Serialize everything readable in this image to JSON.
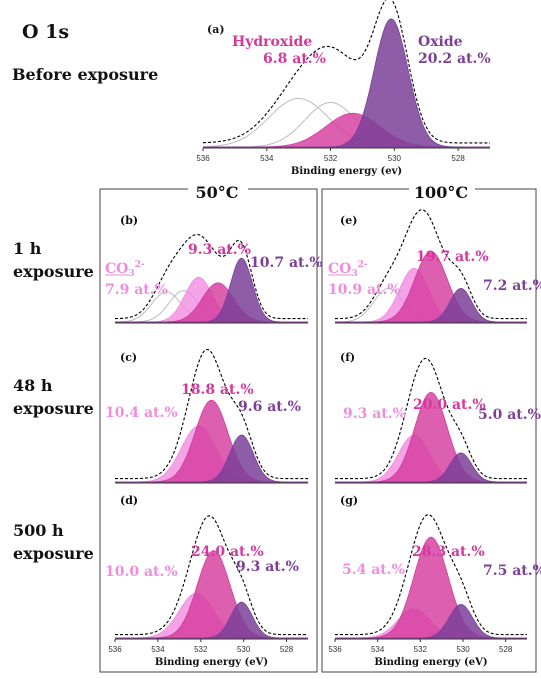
{
  "figure": {
    "species_title": "O 1s",
    "before_label": "Before exposure",
    "col_50": "50°C",
    "col_100": "100°C",
    "rows": [
      {
        "line1": "1 h",
        "line2": "exposure"
      },
      {
        "line1": "48 h",
        "line2": "exposure"
      },
      {
        "line1": "500 h",
        "line2": "exposure"
      }
    ],
    "colors": {
      "oxide": "#7b3f98",
      "hydroxide": "#d4389c",
      "carbonate": "#f08ce0",
      "envelope": "#000000",
      "frame": "#444444"
    }
  },
  "chart_data": [
    {
      "type": "area",
      "panel": "(a)",
      "xlabel": "Binding energy (ev)",
      "x_ticks": [
        "536",
        "534",
        "532",
        "530",
        "528"
      ],
      "xlim": [
        536,
        527
      ],
      "components": [
        {
          "label": "Hydroxide",
          "value_label": "6.8 at.%",
          "species": "hydroxide",
          "center": 531.3,
          "fwhm": 2.0,
          "height": 0.25
        },
        {
          "label": "Oxide",
          "value_label": "20.2 at.%",
          "species": "oxide",
          "center": 530.1,
          "fwhm": 1.25,
          "height": 0.95
        }
      ],
      "unfilled_components": [
        {
          "center": 533.0,
          "fwhm": 2.2,
          "height": 0.36
        },
        {
          "center": 532.0,
          "fwhm": 1.9,
          "height": 0.33
        }
      ]
    },
    {
      "type": "area",
      "panel": "(b)",
      "components": [
        {
          "label": "CO3 2-",
          "value_label": "7.9 at.%",
          "species": "carbonate",
          "center": 532.1,
          "fwhm": 1.5,
          "height": 0.4
        },
        {
          "label": "",
          "value_label": "9.3 at.%",
          "species": "hydroxide",
          "center": 531.2,
          "fwhm": 1.7,
          "height": 0.35
        },
        {
          "label": "",
          "value_label": "10.7 at.%",
          "species": "oxide",
          "center": 530.1,
          "fwhm": 1.2,
          "height": 0.57
        }
      ],
      "unfilled_components": [
        {
          "center": 533.6,
          "fwhm": 1.6,
          "height": 0.27
        },
        {
          "center": 532.8,
          "fwhm": 1.6,
          "height": 0.28
        }
      ]
    },
    {
      "type": "area",
      "panel": "(c)",
      "components": [
        {
          "label": "",
          "value_label": "10.4 at.%",
          "species": "carbonate",
          "center": 532.1,
          "fwhm": 1.9,
          "height": 0.5
        },
        {
          "label": "",
          "value_label": "18.8 at.%",
          "species": "hydroxide",
          "center": 531.5,
          "fwhm": 1.8,
          "height": 0.73
        },
        {
          "label": "",
          "value_label": "9.6 at.%",
          "species": "oxide",
          "center": 530.1,
          "fwhm": 1.3,
          "height": 0.42
        }
      ]
    },
    {
      "type": "area",
      "panel": "(d)",
      "xlabel": "Binding energy (eV)",
      "x_ticks": [
        "536",
        "534",
        "532",
        "530",
        "528"
      ],
      "xlim": [
        536,
        527
      ],
      "components": [
        {
          "label": "",
          "value_label": "10.0 at.%",
          "species": "carbonate",
          "center": 532.2,
          "fwhm": 1.9,
          "height": 0.4
        },
        {
          "label": "",
          "value_label": "24.0 at.%",
          "species": "hydroxide",
          "center": 531.4,
          "fwhm": 1.8,
          "height": 0.78
        },
        {
          "label": "",
          "value_label": "9.3 at.%",
          "species": "oxide",
          "center": 530.1,
          "fwhm": 1.2,
          "height": 0.32
        }
      ]
    },
    {
      "type": "area",
      "panel": "(e)",
      "components": [
        {
          "label": "CO3 2-",
          "value_label": "10.9 at.%",
          "species": "carbonate",
          "center": 532.3,
          "fwhm": 1.6,
          "height": 0.48
        },
        {
          "label": "",
          "value_label": "19.7 at.%",
          "species": "hydroxide",
          "center": 531.5,
          "fwhm": 1.8,
          "height": 0.63
        },
        {
          "label": "",
          "value_label": "7.2 at.%",
          "species": "oxide",
          "center": 530.1,
          "fwhm": 1.2,
          "height": 0.3
        }
      ],
      "unfilled_components": [
        {
          "center": 533.5,
          "fwhm": 1.6,
          "height": 0.3
        }
      ]
    },
    {
      "type": "area",
      "panel": "(f)",
      "components": [
        {
          "label": "",
          "value_label": "9.3  at.%",
          "species": "carbonate",
          "center": 532.3,
          "fwhm": 1.7,
          "height": 0.42
        },
        {
          "label": "",
          "value_label": "20.0 at.%",
          "species": "hydroxide",
          "center": 531.5,
          "fwhm": 1.8,
          "height": 0.8
        },
        {
          "label": "",
          "value_label": "5.0 at.%",
          "species": "oxide",
          "center": 530.1,
          "fwhm": 1.2,
          "height": 0.26
        }
      ]
    },
    {
      "type": "area",
      "panel": "(g)",
      "xlabel": "Binding energy (eV)",
      "x_ticks": [
        "536",
        "534",
        "532",
        "530",
        "528"
      ],
      "xlim": [
        536,
        527
      ],
      "components": [
        {
          "label": "",
          "value_label": "5.4 at.%",
          "species": "carbonate",
          "center": 532.3,
          "fwhm": 1.8,
          "height": 0.26
        },
        {
          "label": "",
          "value_label": "28.3 at.%",
          "species": "hydroxide",
          "center": 531.5,
          "fwhm": 1.9,
          "height": 0.9
        },
        {
          "label": "",
          "value_label": "7.5 at.%",
          "species": "oxide",
          "center": 530.1,
          "fwhm": 1.3,
          "height": 0.3
        }
      ]
    }
  ]
}
